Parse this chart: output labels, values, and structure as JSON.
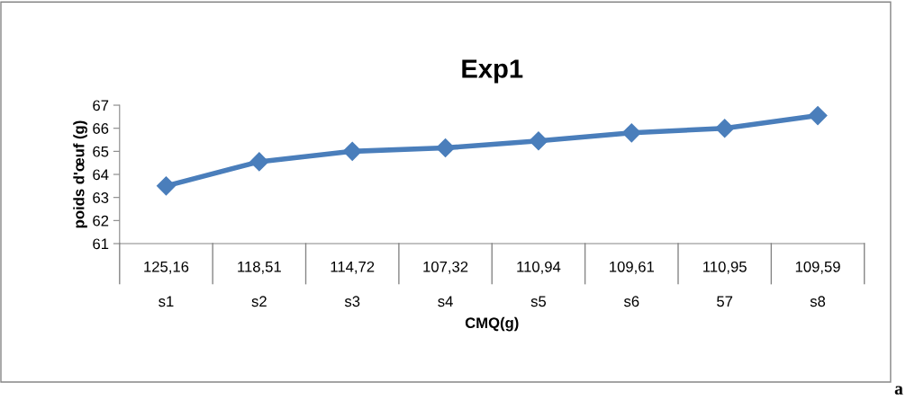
{
  "chart_data": {
    "type": "line",
    "title": "Exp1",
    "xlabel": "CMQ(g)",
    "ylabel": "poids d'œuf (g)",
    "categories": [
      "125,16\ns1",
      "118,51\ns2",
      "114,72\ns3",
      "107,32\ns4",
      "110,94\ns5",
      "109,61\ns6",
      "110,95\n57",
      "109,59\ns8"
    ],
    "series": [
      {
        "color": "#4a7ebb",
        "values": [
          63.5,
          64.55,
          65.0,
          65.15,
          65.45,
          65.8,
          66.0,
          66.55
        ]
      }
    ],
    "ylim": [
      61,
      67
    ],
    "yticks": [
      61,
      62,
      63,
      64,
      65,
      66,
      67
    ],
    "grid": false,
    "legend": false,
    "marker": "diamond",
    "line_style": "solid",
    "annotations": [
      "a"
    ]
  }
}
